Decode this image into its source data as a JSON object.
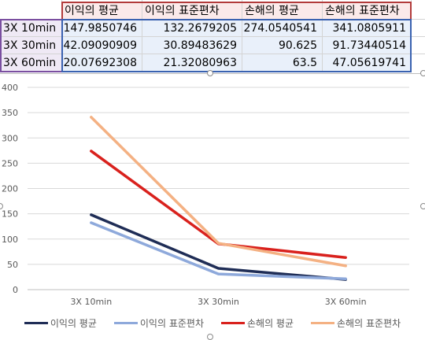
{
  "table": {
    "headers": [
      "이익의 평균",
      "이익의 표준편차",
      "손해의 평균",
      "손해의 표준편차"
    ],
    "rows": [
      {
        "label": "3X 10min",
        "values": [
          "147.9850746",
          "132.2679205",
          "274.0540541",
          "341.0805911"
        ]
      },
      {
        "label": "3X 30min",
        "values": [
          "42.09090909",
          "30.89483629",
          "90.625",
          "91.73440514"
        ]
      },
      {
        "label": "3X 60min",
        "values": [
          "20.07692308",
          "21.32080963",
          "63.5",
          "47.05619741"
        ]
      }
    ]
  },
  "chart_data": {
    "type": "line",
    "categories": [
      "3X 10min",
      "3X 30min",
      "3X 60min"
    ],
    "ylim": [
      0,
      400
    ],
    "yticks": [
      0,
      50,
      100,
      150,
      200,
      250,
      300,
      350,
      400
    ],
    "grid": true,
    "legend_position": "bottom",
    "series": [
      {
        "name": "이익의 평균",
        "color": "#1f2d56",
        "values": [
          147.9850746,
          42.09090909,
          20.07692308
        ]
      },
      {
        "name": "이익의 표준편차",
        "color": "#8ea9db",
        "values": [
          132.2679205,
          30.89483629,
          21.32080963
        ]
      },
      {
        "name": "손해의 평균",
        "color": "#d9211d",
        "values": [
          274.0540541,
          90.625,
          63.5
        ]
      },
      {
        "name": "손해의 표준편차",
        "color": "#f4b183",
        "values": [
          341.0805911,
          91.73440514,
          47.05619741
        ]
      }
    ]
  }
}
